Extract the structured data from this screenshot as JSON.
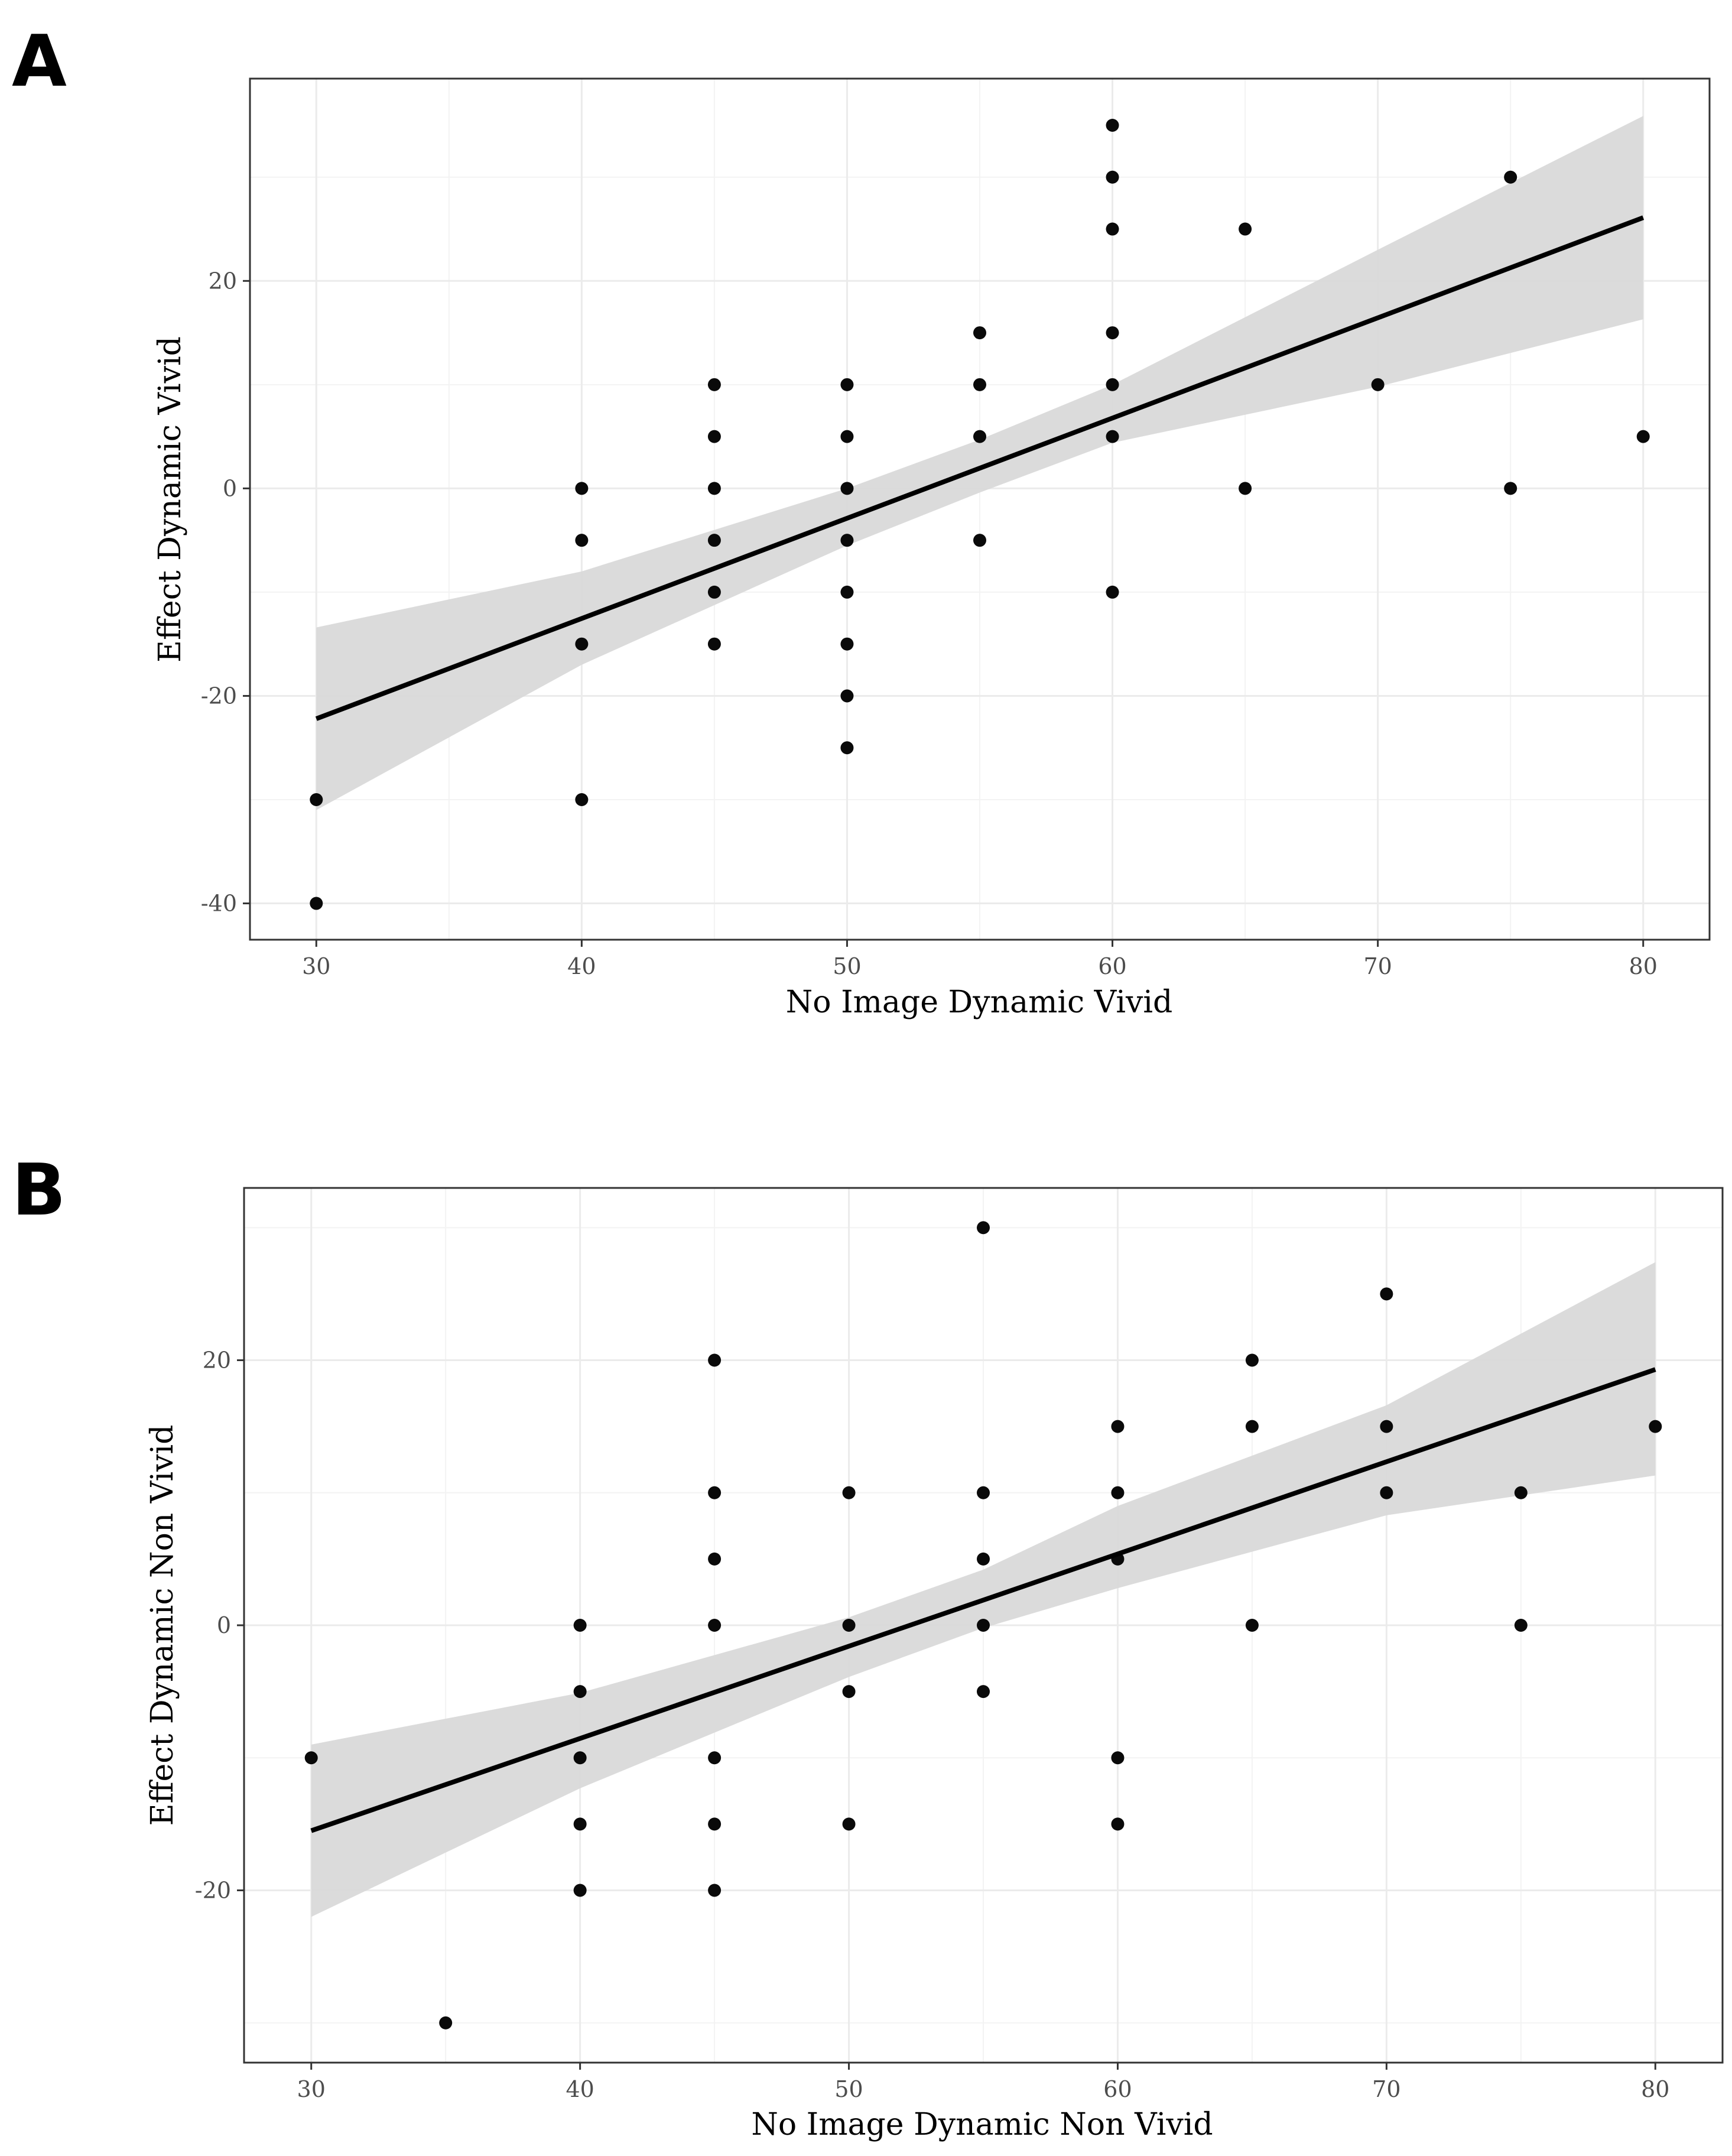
{
  "chart_data": [
    {
      "type": "scatter",
      "panel": "A",
      "xlabel": "No Image Dynamic Vivid",
      "ylabel": "Effect Dynamic Vivid",
      "xlim": [
        27.5,
        82.5
      ],
      "ylim": [
        -43.5,
        39.5
      ],
      "xticks": [
        30,
        40,
        50,
        60,
        70,
        80
      ],
      "yticks": [
        -40,
        -20,
        0,
        20
      ],
      "grid": true,
      "points": [
        [
          30,
          -30
        ],
        [
          30,
          -40
        ],
        [
          40,
          0
        ],
        [
          40,
          -5
        ],
        [
          40,
          -15
        ],
        [
          40,
          -30
        ],
        [
          45,
          10
        ],
        [
          45,
          5
        ],
        [
          45,
          0
        ],
        [
          45,
          -5
        ],
        [
          45,
          -10
        ],
        [
          45,
          -15
        ],
        [
          50,
          10
        ],
        [
          50,
          5
        ],
        [
          50,
          0
        ],
        [
          50,
          -5
        ],
        [
          50,
          -10
        ],
        [
          50,
          -15
        ],
        [
          50,
          -20
        ],
        [
          50,
          -25
        ],
        [
          55,
          15
        ],
        [
          55,
          10
        ],
        [
          55,
          5
        ],
        [
          55,
          -5
        ],
        [
          60,
          35
        ],
        [
          60,
          30
        ],
        [
          60,
          25
        ],
        [
          60,
          15
        ],
        [
          60,
          10
        ],
        [
          60,
          5
        ],
        [
          60,
          -10
        ],
        [
          65,
          25
        ],
        [
          65,
          0
        ],
        [
          70,
          10
        ],
        [
          75,
          30
        ],
        [
          75,
          0
        ],
        [
          80,
          5
        ]
      ],
      "fit": {
        "x": [
          30,
          80
        ],
        "y": [
          -22.2,
          26.1
        ]
      },
      "ci_band": {
        "x": [
          30,
          40,
          50,
          55,
          60,
          70,
          80
        ],
        "lower": [
          -31.0,
          -17.0,
          -5.5,
          -0.4,
          4.4,
          9.8,
          16.3
        ],
        "upper": [
          -13.4,
          -8.0,
          0.0,
          4.7,
          10.0,
          23.0,
          35.9
        ]
      }
    },
    {
      "type": "scatter",
      "panel": "B",
      "xlabel": "No Image Dynamic Non Vivid",
      "ylabel": "Effect Dynamic Non Vivid",
      "xlim": [
        27.5,
        82.5
      ],
      "ylim": [
        -33.0,
        33.0
      ],
      "xticks": [
        30,
        40,
        50,
        60,
        70,
        80
      ],
      "yticks": [
        -20,
        0,
        20
      ],
      "grid": true,
      "points": [
        [
          30,
          -10
        ],
        [
          35,
          -30
        ],
        [
          40,
          0
        ],
        [
          40,
          -5
        ],
        [
          40,
          -10
        ],
        [
          40,
          -15
        ],
        [
          40,
          -20
        ],
        [
          45,
          20
        ],
        [
          45,
          10
        ],
        [
          45,
          5
        ],
        [
          45,
          0
        ],
        [
          45,
          -10
        ],
        [
          45,
          -15
        ],
        [
          45,
          -20
        ],
        [
          50,
          10
        ],
        [
          50,
          0
        ],
        [
          50,
          -5
        ],
        [
          50,
          -15
        ],
        [
          55,
          30
        ],
        [
          55,
          10
        ],
        [
          55,
          5
        ],
        [
          55,
          0
        ],
        [
          55,
          -5
        ],
        [
          60,
          15
        ],
        [
          60,
          10
        ],
        [
          60,
          5
        ],
        [
          60,
          -10
        ],
        [
          60,
          -15
        ],
        [
          65,
          20
        ],
        [
          65,
          15
        ],
        [
          65,
          0
        ],
        [
          70,
          25
        ],
        [
          70,
          15
        ],
        [
          70,
          10
        ],
        [
          75,
          10
        ],
        [
          75,
          0
        ],
        [
          80,
          15
        ]
      ],
      "fit": {
        "x": [
          30,
          80
        ],
        "y": [
          -15.5,
          19.3
        ]
      },
      "ci_band": {
        "x": [
          30,
          40,
          50,
          55,
          60,
          70,
          80
        ],
        "lower": [
          -22.0,
          -12.3,
          -3.9,
          -0.2,
          2.8,
          8.3,
          11.3
        ],
        "upper": [
          -9.0,
          -5.1,
          0.6,
          4.2,
          9.0,
          16.6,
          27.4
        ]
      }
    }
  ],
  "panels": [
    {
      "letter": "A"
    },
    {
      "letter": "B"
    }
  ],
  "colors": {
    "point": "#000000",
    "line": "#000000",
    "band": "#d9d9d9",
    "grid_major": "#ebebeb",
    "grid_minor": "#f3f3f3",
    "border": "#333333",
    "tick_label": "#4d4d4d"
  }
}
